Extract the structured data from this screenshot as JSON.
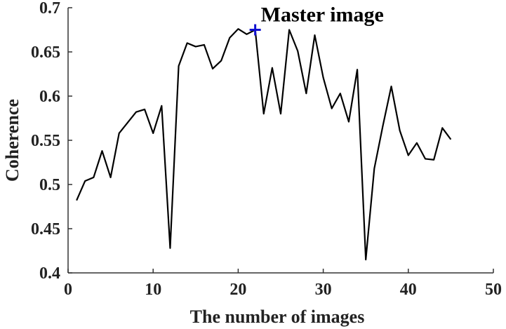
{
  "chart_data": {
    "type": "line",
    "title": "",
    "xlabel": "The number of images",
    "ylabel": "Coherence",
    "xlim": [
      0,
      50
    ],
    "ylim": [
      0.4,
      0.7
    ],
    "xticks": [
      0,
      10,
      20,
      30,
      40,
      50
    ],
    "yticks": [
      0.4,
      0.45,
      0.5,
      0.55,
      0.6,
      0.65,
      0.7
    ],
    "xtick_labels": [
      "0",
      "10",
      "20",
      "30",
      "40",
      "50"
    ],
    "ytick_labels": [
      "0.4",
      "0.45",
      "0.5",
      "0.55",
      "0.6",
      "0.65",
      "0.7"
    ],
    "grid": false,
    "series": [
      {
        "color": "#000000",
        "x": [
          1,
          2,
          3,
          4,
          5,
          6,
          7,
          8,
          9,
          10,
          11,
          12,
          13,
          14,
          15,
          16,
          17,
          18,
          19,
          20,
          21,
          22,
          23,
          24,
          25,
          26,
          27,
          28,
          29,
          30,
          31,
          32,
          33,
          34,
          35,
          36,
          37,
          38,
          39,
          40,
          41,
          42,
          43,
          44,
          45
        ],
        "y": [
          0.482,
          0.504,
          0.508,
          0.538,
          0.508,
          0.558,
          0.57,
          0.582,
          0.585,
          0.558,
          0.589,
          0.428,
          0.634,
          0.66,
          0.656,
          0.658,
          0.631,
          0.64,
          0.666,
          0.676,
          0.67,
          0.675,
          0.58,
          0.632,
          0.58,
          0.675,
          0.651,
          0.603,
          0.669,
          0.621,
          0.586,
          0.603,
          0.571,
          0.63,
          0.415,
          0.518,
          0.566,
          0.611,
          0.561,
          0.533,
          0.547,
          0.529,
          0.528,
          0.564,
          0.551
        ]
      }
    ],
    "marker": {
      "x": 22,
      "y": 0.675,
      "symbol": "plus",
      "color": "#1010d0",
      "label": "Master image"
    }
  }
}
